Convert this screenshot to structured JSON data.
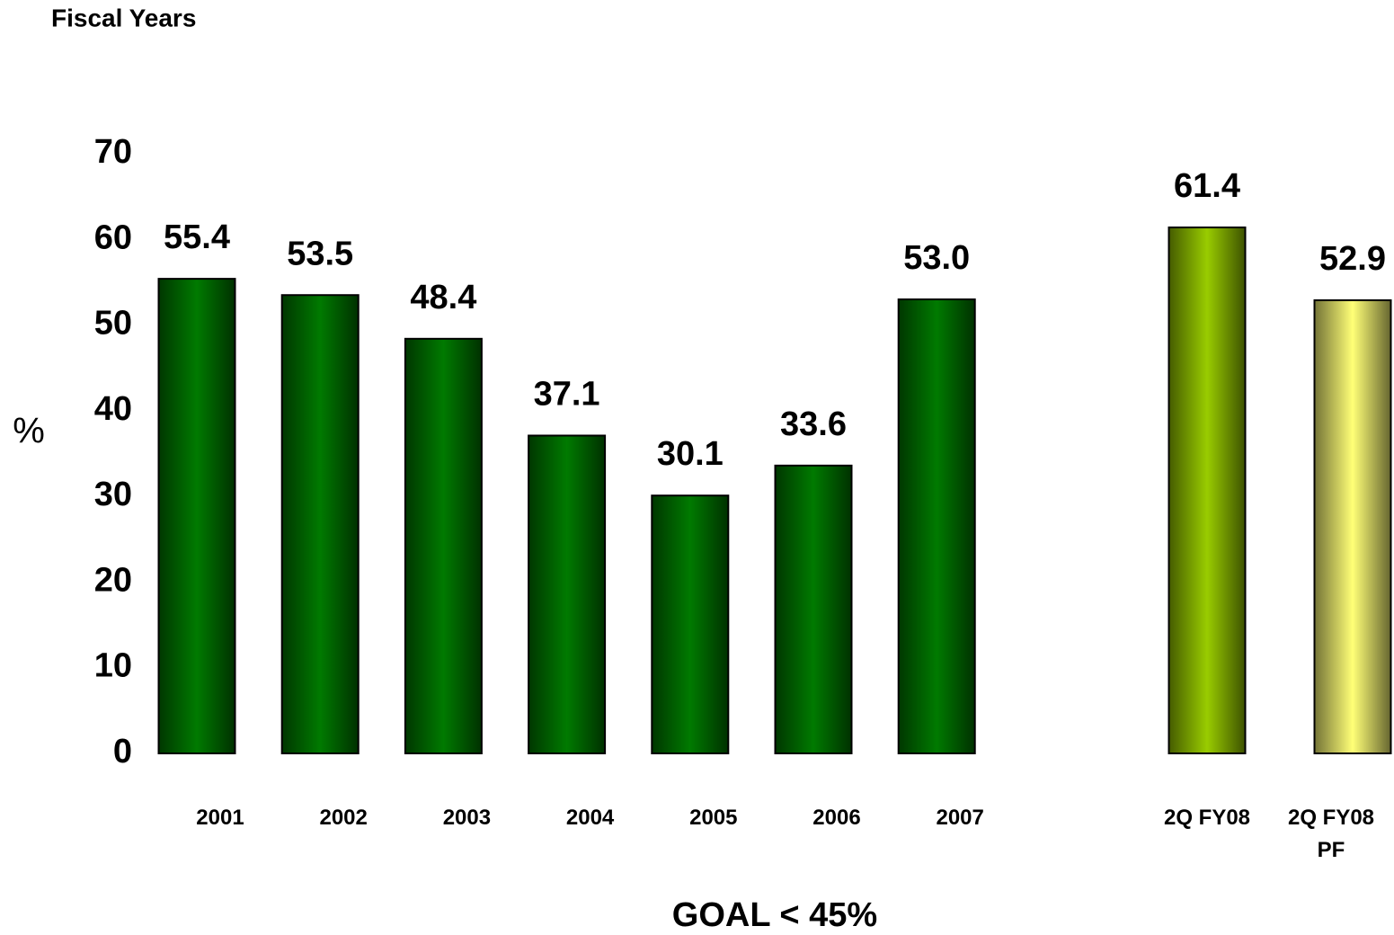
{
  "chart_data": {
    "type": "bar",
    "title": "Fiscal Years",
    "y_label": "%",
    "annotation": "GOAL < 45%",
    "categories": [
      "2001",
      "2002",
      "2003",
      "2004",
      "2005",
      "2006",
      "2007",
      "2Q FY08",
      "2Q FY08 PF"
    ],
    "values": [
      55.4,
      53.5,
      48.4,
      37.1,
      30.1,
      33.6,
      53,
      61.4,
      52.9
    ],
    "value_labels": [
      "55.4",
      "53.5",
      "48.4",
      "37.1",
      "30.1",
      "33.6",
      "53.0",
      "61.4",
      "52.9"
    ],
    "colors": [
      "#007a00",
      "#007a00",
      "#007a00",
      "#007a00",
      "#007a00",
      "#007a00",
      "#007a00",
      "#99cc00",
      "#ffff77"
    ],
    "ylim": [
      0,
      70
    ],
    "yticks": [
      0,
      10,
      20,
      30,
      40,
      50,
      60,
      70
    ],
    "grid": false
  }
}
